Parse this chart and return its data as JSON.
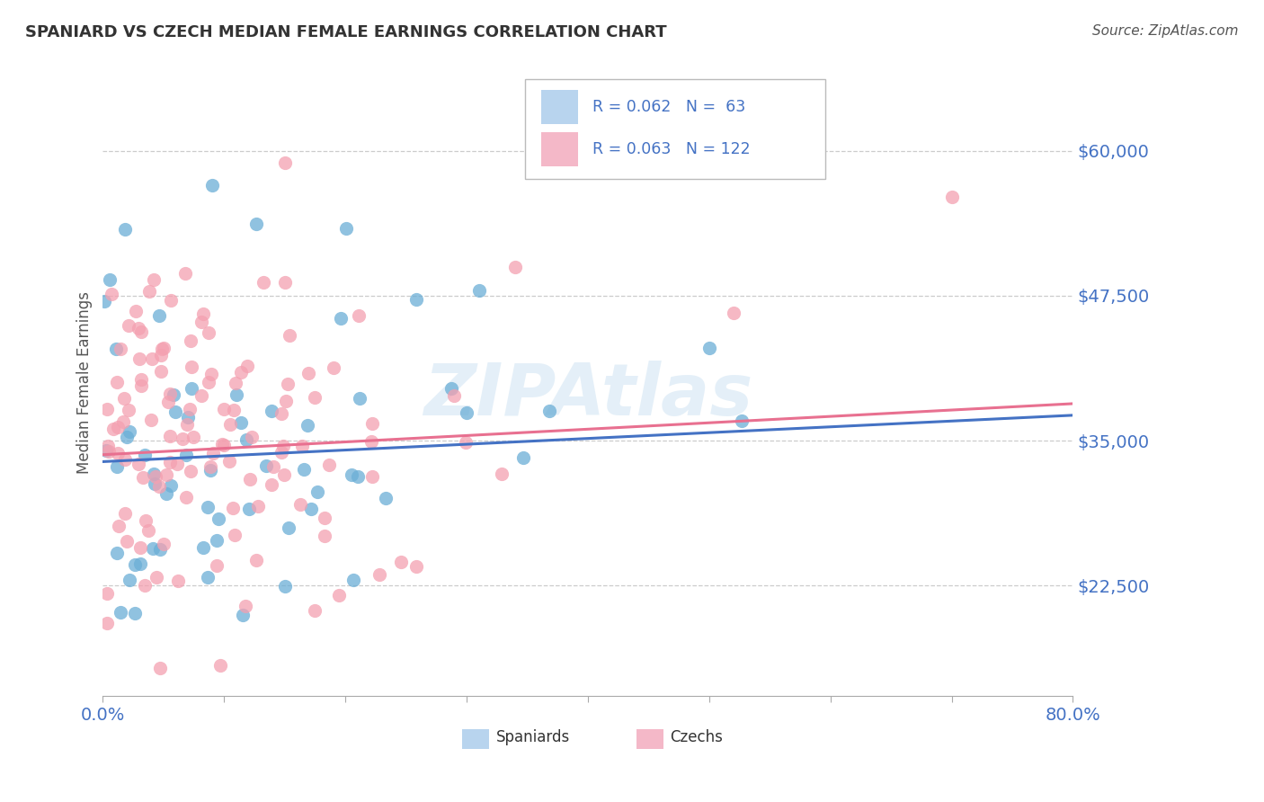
{
  "title": "SPANIARD VS CZECH MEDIAN FEMALE EARNINGS CORRELATION CHART",
  "source_text": "Source: ZipAtlas.com",
  "ylabel": "Median Female Earnings",
  "xlim": [
    0.0,
    0.8
  ],
  "ylim": [
    13000,
    67000
  ],
  "yticks": [
    22500,
    35000,
    47500,
    60000
  ],
  "ytick_labels": [
    "$22,500",
    "$35,000",
    "$47,500",
    "$60,000"
  ],
  "xticks": [
    0.0,
    0.1,
    0.2,
    0.3,
    0.4,
    0.5,
    0.6,
    0.7,
    0.8
  ],
  "xtick_labels": [
    "0.0%",
    "",
    "",
    "",
    "",
    "",
    "",
    "",
    "80.0%"
  ],
  "grid_color": "#cccccc",
  "background_color": "#ffffff",
  "watermark": "ZIPAtlas",
  "watermark_color": "#a8cce8",
  "spaniard_color": "#6baed6",
  "czech_color": "#f4a0b0",
  "spaniard_label": "Spaniards",
  "czech_label": "Czechs",
  "spaniard_R": "0.062",
  "czech_R": "0.063",
  "spaniard_N": "63",
  "czech_N": "122",
  "legend_box_color_spaniard": "#b8d4ee",
  "legend_box_color_czech": "#f4b8c8",
  "title_color": "#333333",
  "tick_label_color": "#4472c4",
  "trend_blue": "#4472c4",
  "trend_pink": "#e87090"
}
